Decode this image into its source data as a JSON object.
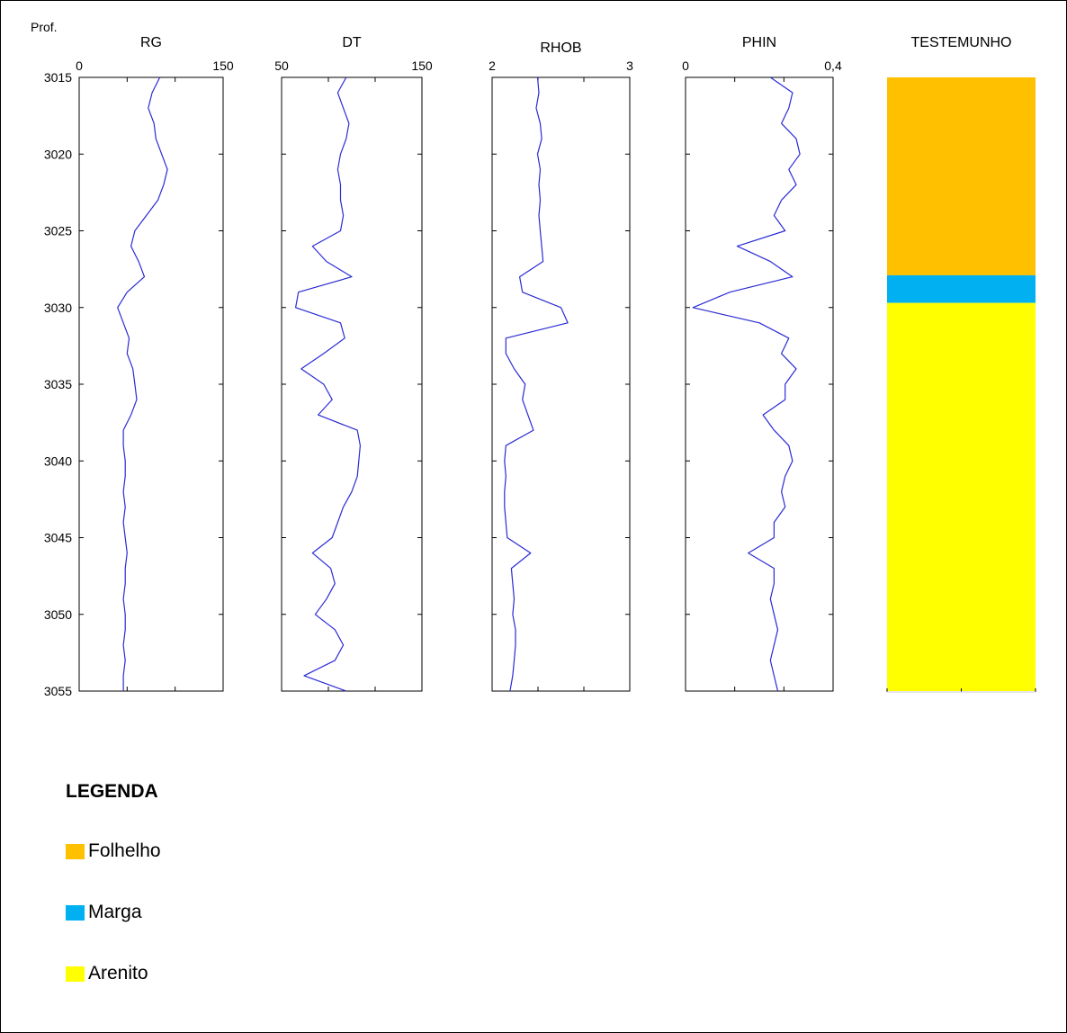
{
  "chart_data": {
    "type": "line",
    "depth_label": "Prof.",
    "depth_range": [
      3015,
      3055
    ],
    "depth_ticks": [
      "3015",
      "3020",
      "3025",
      "3030",
      "3035",
      "3040",
      "3045",
      "3050",
      "3055"
    ],
    "line_color": "#2b2bd6",
    "tracks": [
      {
        "id": "rg",
        "title": "RG",
        "xlim": [
          0,
          150
        ],
        "tick_labels": [
          "0",
          "150"
        ],
        "depth": [
          3015,
          3016,
          3017,
          3018,
          3019,
          3020,
          3021,
          3022,
          3023,
          3024,
          3025,
          3026,
          3027,
          3028,
          3029,
          3030,
          3031,
          3032,
          3033,
          3034,
          3035,
          3036,
          3037,
          3038,
          3039,
          3040,
          3041,
          3042,
          3043,
          3044,
          3045,
          3046,
          3047,
          3048,
          3049,
          3050,
          3051,
          3052,
          3053,
          3054,
          3055
        ],
        "values": [
          84,
          76,
          72,
          78,
          80,
          86,
          92,
          88,
          82,
          70,
          58,
          54,
          62,
          68,
          50,
          40,
          46,
          52,
          50,
          56,
          58,
          60,
          54,
          46,
          46,
          48,
          48,
          46,
          48,
          46,
          48,
          50,
          48,
          48,
          46,
          48,
          48,
          46,
          48,
          46,
          46
        ]
      },
      {
        "id": "dt",
        "title": "DT",
        "xlim": [
          50,
          150
        ],
        "tick_labels": [
          "50",
          "150"
        ],
        "depth": [
          3015,
          3016,
          3017,
          3018,
          3019,
          3020,
          3021,
          3022,
          3023,
          3024,
          3025,
          3026,
          3027,
          3028,
          3029,
          3030,
          3031,
          3032,
          3033,
          3034,
          3035,
          3036,
          3037,
          3038,
          3039,
          3040,
          3041,
          3042,
          3043,
          3044,
          3045,
          3046,
          3047,
          3048,
          3049,
          3050,
          3051,
          3052,
          3053,
          3054,
          3055
        ],
        "values": [
          96,
          90,
          94,
          98,
          96,
          92,
          90,
          92,
          92,
          94,
          92,
          72,
          82,
          100,
          62,
          60,
          92,
          95,
          80,
          64,
          80,
          86,
          76,
          104,
          106,
          105,
          104,
          100,
          94,
          90,
          86,
          72,
          85,
          88,
          82,
          74,
          88,
          94,
          88,
          66,
          96
        ]
      },
      {
        "id": "rhob",
        "title": "RHOB",
        "xlim": [
          2,
          3
        ],
        "tick_labels": [
          "2",
          "3"
        ],
        "depth": [
          3015,
          3016,
          3017,
          3018,
          3019,
          3020,
          3021,
          3022,
          3023,
          3024,
          3025,
          3026,
          3027,
          3028,
          3029,
          3030,
          3031,
          3032,
          3033,
          3034,
          3035,
          3036,
          3037,
          3038,
          3039,
          3040,
          3041,
          3042,
          3043,
          3044,
          3045,
          3046,
          3047,
          3048,
          3049,
          3050,
          3051,
          3052,
          3053,
          3054,
          3055
        ],
        "values": [
          2.33,
          2.34,
          2.32,
          2.35,
          2.36,
          2.33,
          2.35,
          2.34,
          2.35,
          2.34,
          2.35,
          2.36,
          2.37,
          2.2,
          2.22,
          2.5,
          2.55,
          2.1,
          2.1,
          2.16,
          2.24,
          2.22,
          2.26,
          2.3,
          2.1,
          2.09,
          2.1,
          2.09,
          2.09,
          2.1,
          2.11,
          2.28,
          2.14,
          2.15,
          2.16,
          2.15,
          2.17,
          2.17,
          2.16,
          2.15,
          2.13
        ]
      },
      {
        "id": "phin",
        "title": "PHIN",
        "xlim": [
          0,
          0.4
        ],
        "tick_labels": [
          "0",
          "0,4"
        ],
        "depth": [
          3015,
          3016,
          3017,
          3018,
          3019,
          3020,
          3021,
          3022,
          3023,
          3024,
          3025,
          3026,
          3027,
          3028,
          3029,
          3030,
          3031,
          3032,
          3033,
          3034,
          3035,
          3036,
          3037,
          3038,
          3039,
          3040,
          3041,
          3042,
          3043,
          3044,
          3045,
          3046,
          3047,
          3048,
          3049,
          3050,
          3051,
          3052,
          3053,
          3054,
          3055
        ],
        "values": [
          0.23,
          0.29,
          0.28,
          0.26,
          0.3,
          0.31,
          0.28,
          0.3,
          0.26,
          0.24,
          0.27,
          0.14,
          0.23,
          0.29,
          0.12,
          0.02,
          0.2,
          0.28,
          0.26,
          0.3,
          0.27,
          0.27,
          0.21,
          0.24,
          0.28,
          0.29,
          0.27,
          0.26,
          0.27,
          0.24,
          0.24,
          0.17,
          0.24,
          0.24,
          0.23,
          0.24,
          0.25,
          0.24,
          0.23,
          0.24,
          0.25
        ]
      }
    ],
    "core_track": {
      "title": "TESTEMUNHO",
      "intervals": [
        {
          "lithology": "Folhelho",
          "top": 3015,
          "base": 3027.9,
          "color": "#ffc000"
        },
        {
          "lithology": "Marga",
          "top": 3027.9,
          "base": 3029.7,
          "color": "#00b0f0"
        },
        {
          "lithology": "Arenito",
          "top": 3029.7,
          "base": 3055,
          "color": "#ffff00"
        }
      ]
    }
  },
  "legend": {
    "title": "LEGENDA",
    "items": [
      {
        "label": "Folhelho",
        "color": "#ffc000"
      },
      {
        "label": "Marga",
        "color": "#00b0f0"
      },
      {
        "label": "Arenito",
        "color": "#ffff00"
      }
    ]
  }
}
